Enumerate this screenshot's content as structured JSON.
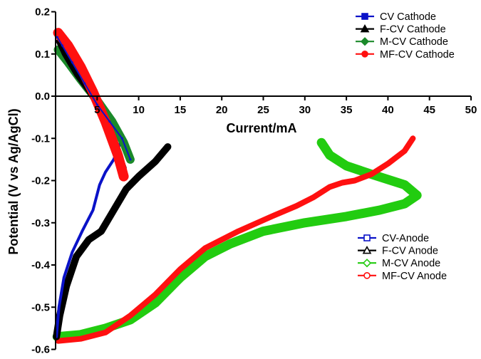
{
  "chart_data": {
    "type": "line",
    "xlabel": "Current/mA",
    "ylabel": "Potential (V vs Ag/AgCl)",
    "xlim": [
      0,
      50
    ],
    "ylim": [
      -0.6,
      0.2
    ],
    "xticks": [
      5,
      10,
      15,
      20,
      25,
      30,
      35,
      40,
      45,
      50
    ],
    "yticks": [
      0.2,
      0.1,
      0.0,
      -0.1,
      -0.2,
      -0.3,
      -0.4,
      -0.5,
      -0.6
    ],
    "ytick_labels": [
      "0.2",
      "0.1",
      "0.0",
      "-0.1",
      "-0.2",
      "-0.3",
      "-0.4",
      "-0.5",
      "-0.6"
    ],
    "grid": false,
    "legends": [
      {
        "placement": "top-right",
        "entries": [
          0,
          1,
          2,
          3
        ]
      },
      {
        "placement": "bottom-right",
        "entries": [
          4,
          5,
          6,
          7
        ]
      }
    ],
    "series": [
      {
        "name": "CV Cathode",
        "color": "#0a12c8",
        "marker": "filled-square",
        "width": 2,
        "points": [
          [
            0.2,
            0.14
          ],
          [
            0.8,
            0.12
          ],
          [
            2,
            0.08
          ],
          [
            3.5,
            0.03
          ],
          [
            5,
            -0.02
          ],
          [
            6.5,
            -0.06
          ],
          [
            8,
            -0.1
          ],
          [
            9,
            -0.15
          ]
        ]
      },
      {
        "name": "F-CV Cathode",
        "color": "#000000",
        "marker": "filled-triangle",
        "width": 6,
        "points": [
          [
            0.3,
            0.13
          ],
          [
            1,
            0.1
          ],
          [
            2.5,
            0.05
          ],
          [
            4,
            0.01
          ],
          [
            5.5,
            -0.04
          ],
          [
            7,
            -0.1
          ],
          [
            8.3,
            -0.17
          ]
        ]
      },
      {
        "name": "M-CV Cathode",
        "color": "#1b8a2a",
        "marker": "filled-diamond",
        "width": 12,
        "points": [
          [
            0.3,
            0.11
          ],
          [
            1.5,
            0.08
          ],
          [
            3,
            0.04
          ],
          [
            5,
            -0.01
          ],
          [
            6.8,
            -0.06
          ],
          [
            8.2,
            -0.11
          ],
          [
            9,
            -0.15
          ]
        ]
      },
      {
        "name": "MF-CV Cathode",
        "color": "#ff1010",
        "marker": "filled-circle",
        "width": 14,
        "points": [
          [
            0.3,
            0.15
          ],
          [
            1.5,
            0.12
          ],
          [
            3,
            0.07
          ],
          [
            4.5,
            0.01
          ],
          [
            6,
            -0.06
          ],
          [
            7.5,
            -0.14
          ],
          [
            8.2,
            -0.19
          ]
        ]
      },
      {
        "name": "CV-Anode",
        "color": "#0a12c8",
        "marker": "open-square",
        "width": 4,
        "points": [
          [
            0.1,
            -0.57
          ],
          [
            0.4,
            -0.5
          ],
          [
            1,
            -0.43
          ],
          [
            2,
            -0.37
          ],
          [
            3.2,
            -0.32
          ],
          [
            4.5,
            -0.27
          ],
          [
            5.3,
            -0.21
          ],
          [
            6,
            -0.18
          ],
          [
            7,
            -0.15
          ],
          [
            8,
            -0.1
          ]
        ]
      },
      {
        "name": "F-CV Anode",
        "color": "#000000",
        "marker": "open-triangle",
        "width": 10,
        "points": [
          [
            0.1,
            -0.57
          ],
          [
            0.5,
            -0.52
          ],
          [
            1.3,
            -0.45
          ],
          [
            2.5,
            -0.38
          ],
          [
            4,
            -0.34
          ],
          [
            5.5,
            -0.32
          ],
          [
            7,
            -0.27
          ],
          [
            8.5,
            -0.22
          ],
          [
            10,
            -0.19
          ],
          [
            12,
            -0.155
          ],
          [
            13.5,
            -0.12
          ]
        ]
      },
      {
        "name": "M-CV Anode",
        "color": "#22cc10",
        "marker": "open-diamond",
        "width": 13,
        "points": [
          [
            0.2,
            -0.57
          ],
          [
            3,
            -0.565
          ],
          [
            6,
            -0.55
          ],
          [
            9,
            -0.53
          ],
          [
            12,
            -0.49
          ],
          [
            15,
            -0.43
          ],
          [
            18,
            -0.38
          ],
          [
            21,
            -0.35
          ],
          [
            25,
            -0.32
          ],
          [
            30,
            -0.3
          ],
          [
            35,
            -0.285
          ],
          [
            39,
            -0.27
          ],
          [
            42,
            -0.255
          ],
          [
            43.5,
            -0.235
          ],
          [
            42,
            -0.21
          ],
          [
            38,
            -0.185
          ],
          [
            35,
            -0.165
          ],
          [
            33,
            -0.14
          ],
          [
            32,
            -0.11
          ]
        ]
      },
      {
        "name": "MF-CV Anode",
        "color": "#ff1010",
        "marker": "open-circle",
        "width": 8,
        "points": [
          [
            0.3,
            -0.58
          ],
          [
            3,
            -0.575
          ],
          [
            6,
            -0.56
          ],
          [
            9,
            -0.52
          ],
          [
            12,
            -0.47
          ],
          [
            15,
            -0.41
          ],
          [
            18,
            -0.36
          ],
          [
            22,
            -0.32
          ],
          [
            26,
            -0.285
          ],
          [
            29,
            -0.26
          ],
          [
            31,
            -0.24
          ],
          [
            33,
            -0.215
          ],
          [
            34.5,
            -0.205
          ],
          [
            36,
            -0.2
          ],
          [
            38,
            -0.185
          ],
          [
            40,
            -0.16
          ],
          [
            42,
            -0.13
          ],
          [
            43,
            -0.1
          ]
        ]
      }
    ]
  }
}
